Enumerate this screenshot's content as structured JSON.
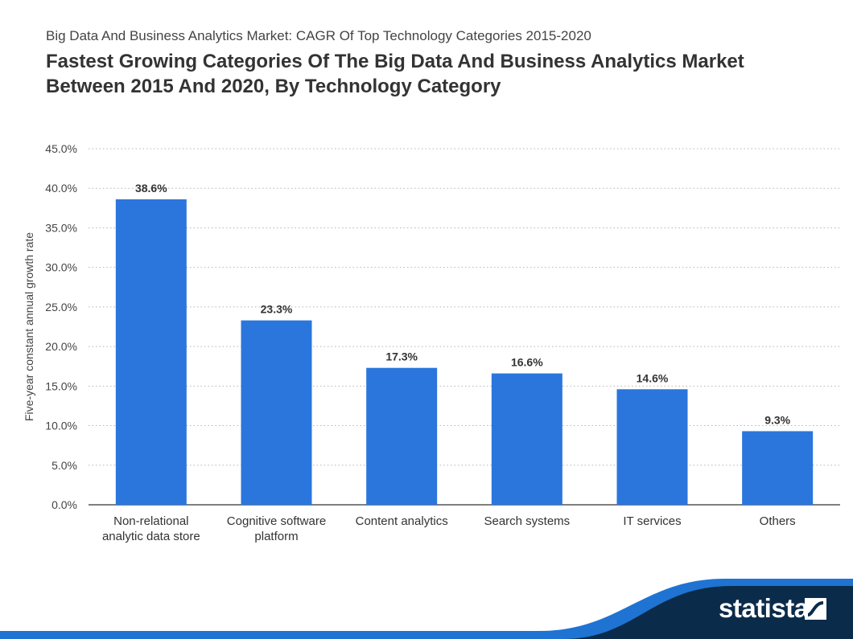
{
  "header": {
    "supertitle": "Big Data And Business Analytics Market: CAGR Of Top Technology Categories 2015-2020",
    "title": "Fastest Growing Categories Of The Big Data And Business Analytics Market Between 2015 And 2020, By Technology Category"
  },
  "brand": {
    "name": "statista",
    "icon": "statista-logo-icon"
  },
  "colors": {
    "bar": "#2a76dd",
    "footer_dark": "#0b2b4a",
    "footer_accent": "#1f73d2"
  },
  "chart_data": {
    "type": "bar",
    "categories": [
      [
        "Non-relational",
        "analytic data store"
      ],
      [
        "Cognitive software",
        "platform"
      ],
      [
        "Content analytics"
      ],
      [
        "Search systems"
      ],
      [
        "IT services"
      ],
      [
        "Others"
      ]
    ],
    "values": [
      38.6,
      23.3,
      17.3,
      16.6,
      14.6,
      9.3
    ],
    "data_labels": [
      "38.6%",
      "23.3%",
      "17.3%",
      "16.6%",
      "14.6%",
      "9.3%"
    ],
    "ylabel": "Five-year constant annual growth rate",
    "ylim": [
      0,
      45
    ],
    "yticks": [
      0,
      5,
      10,
      15,
      20,
      25,
      30,
      35,
      40,
      45
    ],
    "ytick_labels": [
      "0.0%",
      "5.0%",
      "10.0%",
      "15.0%",
      "20.0%",
      "25.0%",
      "30.0%",
      "35.0%",
      "40.0%",
      "45.0%"
    ],
    "grid": true
  }
}
